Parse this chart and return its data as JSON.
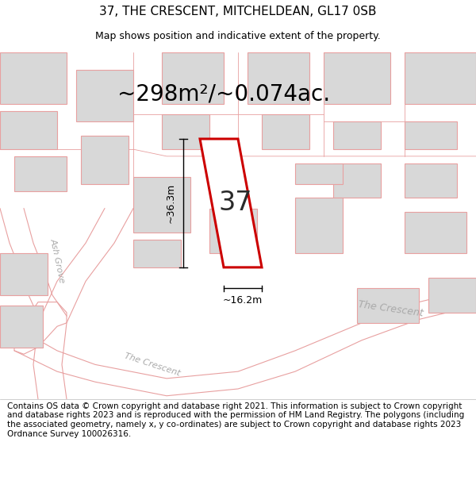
{
  "title_line1": "37, THE CRESCENT, MITCHELDEAN, GL17 0SB",
  "title_line2": "Map shows position and indicative extent of the property.",
  "area_text": "~298m²/~0.074ac.",
  "property_number": "37",
  "dim_width": "~16.2m",
  "dim_height": "~36.3m",
  "bg_color": "#f5f5f5",
  "building_fill": "#d8d8d8",
  "building_edge": "#e8a0a0",
  "road_color": "#e8a0a0",
  "highlight_fill": "#ffffff",
  "highlight_edge": "#cc0000",
  "street_label_color": "#aaaaaa",
  "footer_text": "Contains OS data © Crown copyright and database right 2021. This information is subject to Crown copyright and database rights 2023 and is reproduced with the permission of HM Land Registry. The polygons (including the associated geometry, namely x, y co-ordinates) are subject to Crown copyright and database rights 2023 Ordnance Survey 100026316.",
  "footer_fontsize": 7.5,
  "title1_fontsize": 11,
  "title2_fontsize": 9,
  "area_fontsize": 20,
  "label_fontsize": 9,
  "number_fontsize": 24,
  "street_fontsize": 9
}
